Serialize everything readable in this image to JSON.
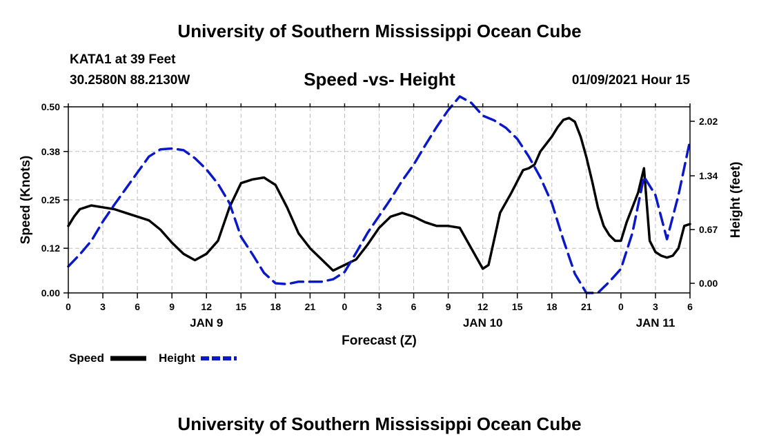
{
  "header": {
    "title": "University of Southern Mississippi Ocean Cube",
    "station": "KATA1 at 39 Feet",
    "coords": "30.2580N 88.2130W",
    "chart_title": "Speed -vs- Height",
    "time": "01/09/2021 Hour 15"
  },
  "footer": {
    "title": "University of Southern Mississippi Ocean Cube"
  },
  "colors": {
    "speed": "#000000",
    "height": "#0a18c8",
    "grid": "#bdbdbd"
  },
  "chart_data": {
    "type": "line",
    "title": "Speed -vs- Height",
    "xlabel": "Forecast (Z)",
    "ylabel": "Speed (Knots)",
    "ylabel_right": "Height (feet)",
    "x_range": [
      0,
      54
    ],
    "ylim": [
      0,
      0.5
    ],
    "ylim_right": [
      -0.12,
      2.2
    ],
    "x_ticks": [
      0,
      3,
      6,
      9,
      12,
      15,
      18,
      21,
      24,
      27,
      30,
      33,
      36,
      39,
      42,
      45,
      48,
      51,
      54
    ],
    "x_tick_labels": [
      "0",
      "3",
      "6",
      "9",
      "12",
      "15",
      "18",
      "21",
      "0",
      "3",
      "6",
      "9",
      "12",
      "15",
      "18",
      "21",
      "0",
      "3",
      "6"
    ],
    "y_ticks": [
      0.0,
      0.12,
      0.25,
      0.38,
      0.5
    ],
    "y_tick_labels": [
      "0.00",
      "0.12",
      "0.25",
      "0.38",
      "0.50"
    ],
    "y_ticks_right": [
      0.0,
      0.67,
      1.34,
      2.02
    ],
    "y_tick_labels_right": [
      "0.00",
      "0.67",
      "1.34",
      "2.02"
    ],
    "date_labels": [
      {
        "x": 12,
        "label": "JAN 9"
      },
      {
        "x": 36,
        "label": "JAN 10"
      },
      {
        "x": 51,
        "label": "JAN 11"
      }
    ],
    "legend": {
      "placement": "bottom-left"
    },
    "series": [
      {
        "name": "Speed",
        "axis": "left",
        "style": "solid",
        "points": [
          [
            0,
            0.18
          ],
          [
            0.5,
            0.205
          ],
          [
            1,
            0.225
          ],
          [
            2,
            0.235
          ],
          [
            3,
            0.23
          ],
          [
            4,
            0.225
          ],
          [
            5,
            0.215
          ],
          [
            6,
            0.205
          ],
          [
            7,
            0.195
          ],
          [
            8,
            0.17
          ],
          [
            9,
            0.135
          ],
          [
            10,
            0.105
          ],
          [
            11,
            0.088
          ],
          [
            12,
            0.105
          ],
          [
            13,
            0.14
          ],
          [
            14,
            0.23
          ],
          [
            15,
            0.295
          ],
          [
            16,
            0.305
          ],
          [
            17,
            0.31
          ],
          [
            18,
            0.29
          ],
          [
            19,
            0.23
          ],
          [
            20,
            0.16
          ],
          [
            21,
            0.12
          ],
          [
            22,
            0.09
          ],
          [
            23,
            0.06
          ],
          [
            24,
            0.075
          ],
          [
            25,
            0.09
          ],
          [
            26,
            0.13
          ],
          [
            27,
            0.175
          ],
          [
            28,
            0.205
          ],
          [
            29,
            0.215
          ],
          [
            30,
            0.205
          ],
          [
            31,
            0.19
          ],
          [
            32,
            0.18
          ],
          [
            33,
            0.18
          ],
          [
            34,
            0.175
          ],
          [
            35,
            0.12
          ],
          [
            36,
            0.065
          ],
          [
            36.5,
            0.075
          ],
          [
            37,
            0.145
          ],
          [
            37.5,
            0.215
          ],
          [
            38.5,
            0.27
          ],
          [
            39,
            0.3
          ],
          [
            39.5,
            0.33
          ],
          [
            40,
            0.335
          ],
          [
            40.5,
            0.345
          ],
          [
            41,
            0.38
          ],
          [
            42,
            0.42
          ],
          [
            42.5,
            0.445
          ],
          [
            43,
            0.465
          ],
          [
            43.5,
            0.47
          ],
          [
            44,
            0.46
          ],
          [
            44.5,
            0.42
          ],
          [
            45,
            0.365
          ],
          [
            45.5,
            0.3
          ],
          [
            46,
            0.23
          ],
          [
            46.5,
            0.18
          ],
          [
            47,
            0.155
          ],
          [
            47.5,
            0.14
          ],
          [
            48,
            0.14
          ],
          [
            48.5,
            0.19
          ],
          [
            49,
            0.23
          ],
          [
            49.5,
            0.27
          ],
          [
            50,
            0.335
          ],
          [
            50.5,
            0.14
          ],
          [
            51,
            0.11
          ],
          [
            51.5,
            0.1
          ],
          [
            52,
            0.095
          ],
          [
            52.5,
            0.1
          ],
          [
            53,
            0.12
          ],
          [
            53.5,
            0.18
          ],
          [
            54,
            0.185
          ]
        ]
      },
      {
        "name": "Height",
        "axis": "right",
        "style": "dashed",
        "points": [
          [
            0,
            0.21
          ],
          [
            1,
            0.36
          ],
          [
            2,
            0.53
          ],
          [
            3,
            0.77
          ],
          [
            4,
            0.98
          ],
          [
            5,
            1.18
          ],
          [
            6,
            1.38
          ],
          [
            7,
            1.58
          ],
          [
            8,
            1.67
          ],
          [
            9,
            1.68
          ],
          [
            10,
            1.66
          ],
          [
            11,
            1.56
          ],
          [
            12,
            1.42
          ],
          [
            13,
            1.24
          ],
          [
            14,
            1.0
          ],
          [
            15,
            0.58
          ],
          [
            16,
            0.36
          ],
          [
            17,
            0.13
          ],
          [
            18,
            0.0
          ],
          [
            19,
            -0.01
          ],
          [
            20,
            0.02
          ],
          [
            21,
            0.02
          ],
          [
            22,
            0.02
          ],
          [
            23,
            0.05
          ],
          [
            24,
            0.14
          ],
          [
            25,
            0.38
          ],
          [
            26,
            0.63
          ],
          [
            27,
            0.84
          ],
          [
            28,
            1.05
          ],
          [
            29,
            1.28
          ],
          [
            30,
            1.48
          ],
          [
            31,
            1.72
          ],
          [
            32,
            1.95
          ],
          [
            33,
            2.16
          ],
          [
            34,
            2.33
          ],
          [
            35,
            2.25
          ],
          [
            36,
            2.09
          ],
          [
            37,
            2.03
          ],
          [
            38,
            1.94
          ],
          [
            39,
            1.8
          ],
          [
            40,
            1.58
          ],
          [
            41,
            1.32
          ],
          [
            42,
            1.0
          ],
          [
            43,
            0.54
          ],
          [
            44,
            0.12
          ],
          [
            45,
            -0.12
          ],
          [
            46,
            -0.12
          ],
          [
            47,
            0.02
          ],
          [
            48,
            0.18
          ],
          [
            49,
            0.63
          ],
          [
            50,
            1.33
          ],
          [
            51,
            1.1
          ],
          [
            52,
            0.55
          ],
          [
            53,
            1.1
          ],
          [
            54,
            1.78
          ]
        ]
      }
    ]
  }
}
